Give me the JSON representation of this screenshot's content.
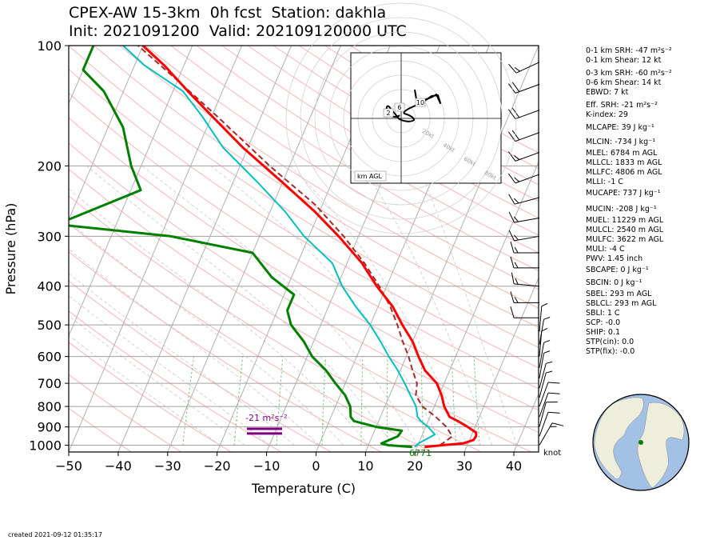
{
  "header": {
    "title_line1": "CPEX-AW 15-3km  0h fcst  Station: dakhla",
    "title_line2": "Init: 2021091200  Valid: 202109120000 UTC"
  },
  "footer": {
    "created": "created 2021-09-12 01:35:17"
  },
  "indices": [
    "0-1 km SRH: -47 m²s⁻²",
    "0-1 km Shear: 12 kt",
    "0-3 km SRH: -60 m²s⁻²",
    "0-6 km Shear: 14 kt",
    "EBWD: 7 kt",
    "Eff. SRH: -21 m²s⁻²",
    "K-index: 29",
    "MLCAPE: 39 J kg⁻¹",
    "MLCIN: -734 J kg⁻¹",
    "MLEL: 6784 m AGL",
    "MLLCL: 1833 m AGL",
    "MLLFC: 4806 m AGL",
    "MLLI: -1 C",
    "MUCAPE: 737 J kg⁻¹",
    "MUCIN: -208 J kg⁻¹",
    "MUEL: 11229 m AGL",
    "MULCL: 2540 m AGL",
    "MULFC: 3622 m AGL",
    "MULI: -4 C",
    "PWV: 1.45 inch",
    "SBCAPE: 0 J kg⁻¹",
    "SBCIN: 0 J kg⁻¹",
    "SBEL: 293 m AGL",
    "SBLCL: 293 m AGL",
    "SBLI: 1 C",
    "SCP: -0.0",
    "SHIP: 0.1",
    "STP(cin): 0.0",
    "STP(fix): -0.0"
  ],
  "colors": {
    "temperature": "#ff0000",
    "dewpoint": "#008000",
    "wetbulb": "#00c0c0",
    "parcel": "#a52a2a",
    "isotherm": "#b0b0b0",
    "dry_adiabat": "#f4b6b6",
    "moist_adiabat": "#c8c8c8",
    "mixing_ratio": "#66bb66",
    "effective_layer": "#800080"
  },
  "chart_data": {
    "type": "skew-t",
    "xlabel": "Temperature (C)",
    "ylabel": "Pressure (hPa)",
    "xlim": [
      -50,
      45
    ],
    "ylim": [
      1040,
      100
    ],
    "x_ticks": [
      "−50",
      "−40",
      "−30",
      "−20",
      "−10",
      "0",
      "10",
      "20",
      "30",
      "40"
    ],
    "y_ticks": [
      100,
      200,
      300,
      400,
      500,
      600,
      700,
      800,
      900,
      1000
    ],
    "skew": 35,
    "temperature": [
      [
        1010,
        21.5
      ],
      [
        1000,
        25
      ],
      [
        990,
        29
      ],
      [
        970,
        30.8
      ],
      [
        950,
        31
      ],
      [
        930,
        30.7
      ],
      [
        900,
        28.5
      ],
      [
        870,
        26
      ],
      [
        850,
        24
      ],
      [
        800,
        22
      ],
      [
        750,
        20.5
      ],
      [
        700,
        18.5
      ],
      [
        650,
        15
      ],
      [
        600,
        12.5
      ],
      [
        550,
        10
      ],
      [
        500,
        6.5
      ],
      [
        450,
        3
      ],
      [
        400,
        -2
      ],
      [
        350,
        -7
      ],
      [
        300,
        -14
      ],
      [
        260,
        -21
      ],
      [
        220,
        -30
      ],
      [
        180,
        -41
      ],
      [
        150,
        -50
      ],
      [
        130,
        -57
      ],
      [
        112,
        -64
      ],
      [
        100,
        -70
      ]
    ],
    "dewpoint": [
      [
        1010,
        19
      ],
      [
        1000,
        14
      ],
      [
        990,
        12.5
      ],
      [
        970,
        13.8
      ],
      [
        950,
        15.2
      ],
      [
        920,
        15.5
      ],
      [
        900,
        10
      ],
      [
        870,
        5
      ],
      [
        850,
        4
      ],
      [
        800,
        3
      ],
      [
        750,
        1
      ],
      [
        700,
        -2
      ],
      [
        650,
        -5
      ],
      [
        600,
        -9
      ],
      [
        550,
        -12
      ],
      [
        500,
        -16
      ],
      [
        460,
        -18
      ],
      [
        420,
        -18
      ],
      [
        380,
        -24
      ],
      [
        330,
        -30
      ],
      [
        300,
        -48
      ],
      [
        280,
        -72
      ],
      [
        230,
        -58
      ],
      [
        200,
        -62
      ],
      [
        160,
        -67
      ],
      [
        130,
        -74
      ],
      [
        115,
        -80
      ],
      [
        100,
        -80
      ]
    ],
    "wetbulb": [
      [
        1010,
        19.5
      ],
      [
        990,
        20
      ],
      [
        960,
        21.5
      ],
      [
        940,
        22.5
      ],
      [
        900,
        20.5
      ],
      [
        870,
        18.5
      ],
      [
        850,
        17.5
      ],
      [
        800,
        16.3
      ],
      [
        750,
        14.2
      ],
      [
        700,
        12
      ],
      [
        650,
        9.5
      ],
      [
        600,
        6.5
      ],
      [
        550,
        3.5
      ],
      [
        500,
        0
      ],
      [
        450,
        -4.5
      ],
      [
        400,
        -9
      ],
      [
        350,
        -13
      ],
      [
        300,
        -21
      ],
      [
        260,
        -27
      ],
      [
        220,
        -35
      ],
      [
        180,
        -45
      ],
      [
        150,
        -52
      ],
      [
        130,
        -58
      ],
      [
        112,
        -68
      ],
      [
        100,
        -74
      ]
    ],
    "parcel": [
      [
        1000,
        24.5
      ],
      [
        950,
        26.2
      ],
      [
        900,
        24.2
      ],
      [
        850,
        21.2
      ],
      [
        800,
        17.6
      ],
      [
        750,
        15.3
      ],
      [
        700,
        14.5
      ],
      [
        650,
        12.5
      ],
      [
        600,
        10.5
      ],
      [
        550,
        8
      ],
      [
        500,
        5.5
      ],
      [
        450,
        2.5
      ],
      [
        400,
        -1.5
      ],
      [
        350,
        -6.5
      ],
      [
        300,
        -13
      ],
      [
        250,
        -21.5
      ],
      [
        200,
        -34
      ],
      [
        150,
        -49
      ],
      [
        120,
        -61
      ],
      [
        100,
        -71
      ]
    ],
    "wind_barbs": [
      {
        "p": 1000,
        "dir": 30,
        "spd": 15
      },
      {
        "p": 950,
        "dir": 20,
        "spd": 10
      },
      {
        "p": 900,
        "dir": 15,
        "spd": 10
      },
      {
        "p": 850,
        "dir": 20,
        "spd": 10
      },
      {
        "p": 800,
        "dir": 20,
        "spd": 10
      },
      {
        "p": 760,
        "dir": 15,
        "spd": 5
      },
      {
        "p": 720,
        "dir": 15,
        "spd": 5
      },
      {
        "p": 680,
        "dir": 10,
        "spd": 5
      },
      {
        "p": 640,
        "dir": 10,
        "spd": 5
      },
      {
        "p": 600,
        "dir": 5,
        "spd": 5
      },
      {
        "p": 560,
        "dir": 10,
        "spd": 5
      },
      {
        "p": 520,
        "dir": 5,
        "spd": 5
      },
      {
        "p": 480,
        "dir": 270,
        "spd": 10
      },
      {
        "p": 440,
        "dir": 270,
        "spd": 15
      },
      {
        "p": 400,
        "dir": 275,
        "spd": 15
      },
      {
        "p": 360,
        "dir": 270,
        "spd": 15
      },
      {
        "p": 330,
        "dir": 270,
        "spd": 15
      },
      {
        "p": 300,
        "dir": 260,
        "spd": 15
      },
      {
        "p": 270,
        "dir": 260,
        "spd": 15
      },
      {
        "p": 240,
        "dir": 255,
        "spd": 15
      },
      {
        "p": 210,
        "dir": 250,
        "spd": 15
      },
      {
        "p": 185,
        "dir": 250,
        "spd": 15
      },
      {
        "p": 165,
        "dir": 250,
        "spd": 20
      },
      {
        "p": 145,
        "dir": 250,
        "spd": 20
      },
      {
        "p": 125,
        "dir": 250,
        "spd": 20
      },
      {
        "p": 110,
        "dir": 245,
        "spd": 15
      }
    ],
    "barb_unit": "knot",
    "surface_label": "6771",
    "effective_srh_label": "-21 m²s⁻²",
    "effective_layer_bars": [
      910,
      935
    ],
    "hodograph": {
      "ring_labels": [
        "20kt",
        "40kt",
        "60kt",
        "80kt"
      ],
      "height_labels": [
        "10",
        "6",
        "2"
      ],
      "legend": "km AGL"
    }
  }
}
